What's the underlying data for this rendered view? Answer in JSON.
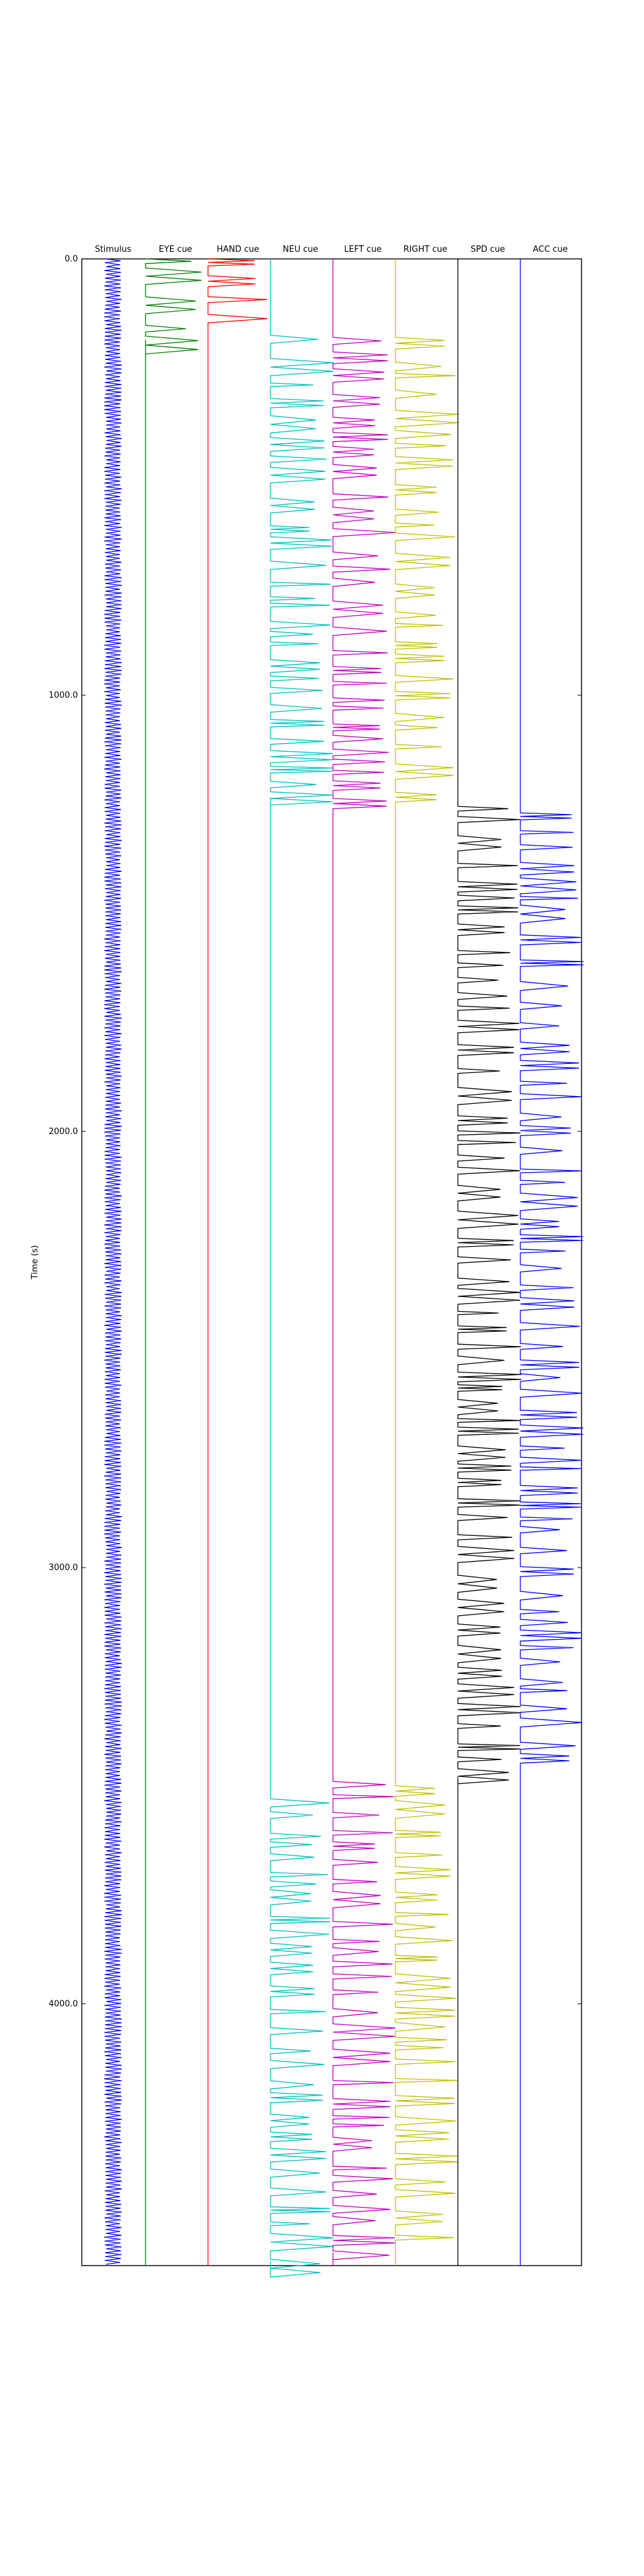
{
  "chart_data": {
    "type": "line",
    "ylabel": "Time (s)",
    "ylim": [
      4600,
      0
    ],
    "yticks": [
      0.0,
      1000.0,
      2000.0,
      3000.0,
      4000.0
    ],
    "ytick_labels": [
      "0.0",
      "1000.0",
      "2000.0",
      "3000.0",
      "4000.0"
    ],
    "grid": false,
    "series": [
      {
        "name": "Stimulus",
        "color": "#0000ff",
        "kind": "stimulus",
        "active": [
          [
            0,
            4590
          ]
        ]
      },
      {
        "name": "EYE cue",
        "color": "#008000",
        "kind": "cue",
        "active": [
          [
            0,
            185
          ]
        ]
      },
      {
        "name": "HAND cue",
        "color": "#ff0000",
        "kind": "cue",
        "active": [
          [
            0,
            150
          ]
        ]
      },
      {
        "name": "NEU cue",
        "color": "#00bfbf",
        "kind": "cue",
        "active": [
          [
            175,
            1235
          ],
          [
            3530,
            4590
          ]
        ]
      },
      {
        "name": "LEFT cue",
        "color": "#bf00bf",
        "kind": "cue",
        "active": [
          [
            180,
            1270
          ],
          [
            3490,
            4570
          ]
        ]
      },
      {
        "name": "RIGHT cue",
        "color": "#bfbf00",
        "kind": "cue",
        "active": [
          [
            180,
            1250
          ],
          [
            3500,
            4560
          ]
        ]
      },
      {
        "name": "SPD cue",
        "color": "#000000",
        "kind": "cue",
        "active": [
          [
            1255,
            3480
          ]
        ]
      },
      {
        "name": "ACC cue",
        "color": "#0000ff",
        "kind": "cue",
        "active": [
          [
            1270,
            3470
          ]
        ]
      }
    ]
  }
}
